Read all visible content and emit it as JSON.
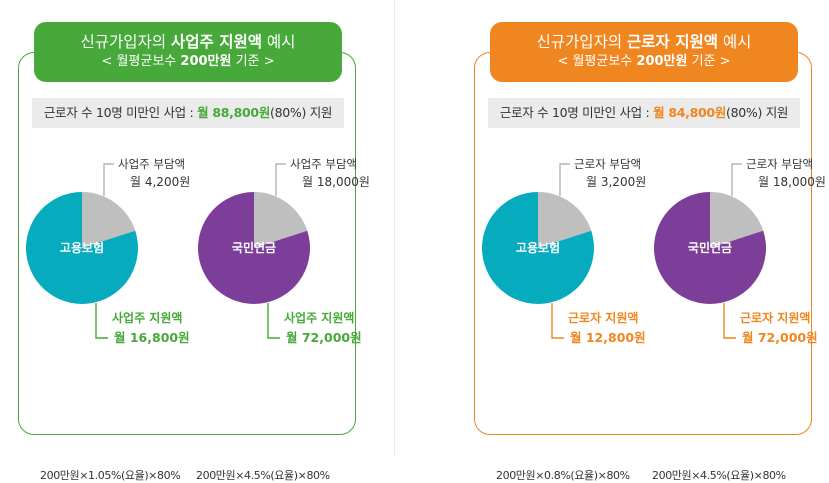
{
  "colors": {
    "green": "#46a939",
    "orange": "#f0861f",
    "teal": "#06abbe",
    "purple": "#7c3e98",
    "gray_slice": "#bfbfbf",
    "leader_gray": "#a6a6a6"
  },
  "left_panel": {
    "title_pre": "신규가입자의 ",
    "title_bold": "사업주 지원액",
    "title_post": " 예시",
    "subtitle_pre": "< 월평균보수 ",
    "subtitle_bold": "200만원",
    "subtitle_post": " 기준 >",
    "summary_pre": "근로자 수 10명 미만인 사업 : ",
    "summary_highlight": "월 88,800원",
    "summary_post": "(80%) 지원",
    "pies": [
      {
        "center_label": "고용보험",
        "burden_label": "사업주 부담액",
        "burden_amount": "월 4,200원",
        "support_label": "사업주 지원액",
        "support_amount": "월 16,800원",
        "formula": "200만원×1.05%(요율)×80%"
      },
      {
        "center_label": "국민연금",
        "burden_label": "사업주 부담액",
        "burden_amount": "월 18,000원",
        "support_label": "사업주 지원액",
        "support_amount": "월 72,000원",
        "formula": "200만원×4.5%(요율)×80%"
      }
    ]
  },
  "right_panel": {
    "title_pre": "신규가입자의 ",
    "title_bold": "근로자 지원액",
    "title_post": " 예시",
    "subtitle_pre": "< 월평균보수 ",
    "subtitle_bold": "200만원",
    "subtitle_post": " 기준 >",
    "summary_pre": "근로자 수 10명 미만인 사업 : ",
    "summary_highlight": "월 84,800원",
    "summary_post": "(80%) 지원",
    "pies": [
      {
        "center_label": "고용보험",
        "burden_label": "근로자 부담액",
        "burden_amount": "월 3,200원",
        "support_label": "근로자 지원액",
        "support_amount": "월 12,800원",
        "formula": "200만원×0.8%(요율)×80%"
      },
      {
        "center_label": "국민연금",
        "burden_label": "근로자 부담액",
        "burden_amount": "월 18,000원",
        "support_label": "근로자 지원액",
        "support_amount": "월 72,000원",
        "formula": "200만원×4.5%(요율)×80%"
      }
    ]
  },
  "chart_data": [
    {
      "type": "pie",
      "title": "고용보험",
      "categories": [
        "사업주 지원액",
        "사업주 부담액"
      ],
      "values": [
        16800,
        4200
      ],
      "colors": [
        "#06abbe",
        "#bfbfbf"
      ]
    },
    {
      "type": "pie",
      "title": "국민연금",
      "categories": [
        "사업주 지원액",
        "사업주 부담액"
      ],
      "values": [
        72000,
        18000
      ],
      "colors": [
        "#7c3e98",
        "#bfbfbf"
      ]
    },
    {
      "type": "pie",
      "title": "고용보험",
      "categories": [
        "근로자 지원액",
        "근로자 부담액"
      ],
      "values": [
        12800,
        3200
      ],
      "colors": [
        "#06abbe",
        "#bfbfbf"
      ]
    },
    {
      "type": "pie",
      "title": "국민연금",
      "categories": [
        "근로자 지원액",
        "근로자 부담액"
      ],
      "values": [
        72000,
        18000
      ],
      "colors": [
        "#7c3e98",
        "#bfbfbf"
      ]
    }
  ]
}
